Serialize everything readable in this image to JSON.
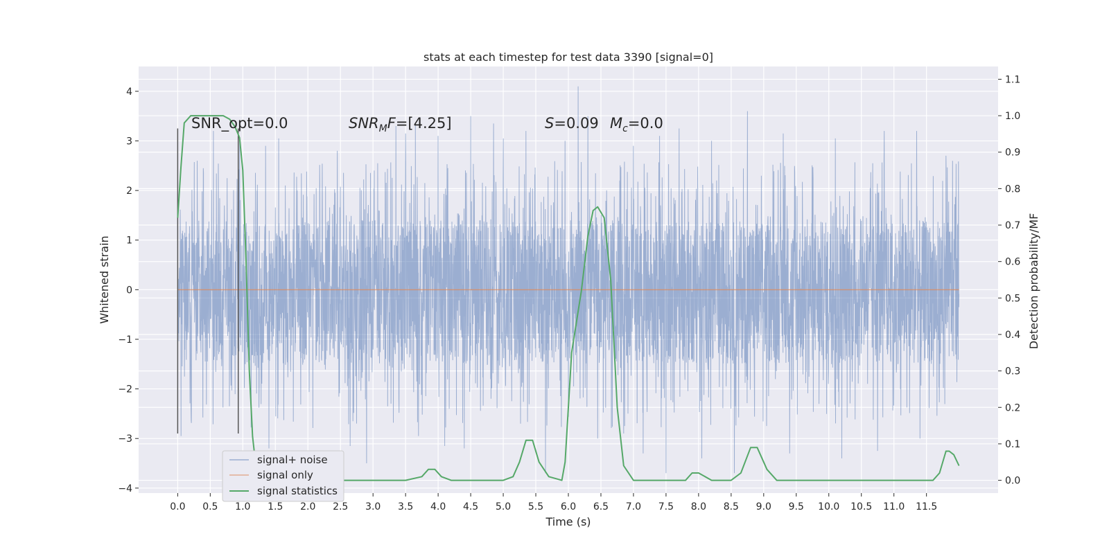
{
  "chart_data": {
    "type": "line",
    "title": "stats at each timestep for test data 3390 [signal=0]",
    "xlabel": "Time (s)",
    "ylabel": "Whitened strain",
    "y2label": "Detection probability/MF",
    "xlim": [
      -0.6,
      12.6
    ],
    "ylim": [
      -4.1,
      4.5
    ],
    "y2lim": [
      -0.035,
      1.135
    ],
    "x_ticks": [
      0.0,
      0.5,
      1.0,
      1.5,
      2.0,
      2.5,
      3.0,
      3.5,
      4.0,
      4.5,
      5.0,
      5.5,
      6.0,
      6.5,
      7.0,
      7.5,
      8.0,
      8.5,
      9.0,
      9.5,
      10.0,
      10.5,
      11.0,
      11.5
    ],
    "x_tick_labels": [
      "0.0",
      "0.5",
      "1.0",
      "1.5",
      "2.0",
      "2.5",
      "3.0",
      "3.5",
      "4.0",
      "4.5",
      "5.0",
      "5.5",
      "6.0",
      "6.5",
      "7.0",
      "7.5",
      "8.0",
      "8.5",
      "9.0",
      "9.5",
      "10.0",
      "10.5",
      "11.0",
      "11.5"
    ],
    "y_ticks": [
      -4,
      -3,
      -2,
      -1,
      0,
      1,
      2,
      3,
      4
    ],
    "y_tick_labels": [
      "−4",
      "−3",
      "−2",
      "−1",
      "0",
      "1",
      "2",
      "3",
      "4"
    ],
    "y2_ticks": [
      0.0,
      0.1,
      0.2,
      0.3,
      0.4,
      0.5,
      0.6,
      0.7,
      0.8,
      0.9,
      1.0,
      1.1
    ],
    "y2_tick_labels": [
      "0.0",
      "0.1",
      "0.2",
      "0.3",
      "0.4",
      "0.5",
      "0.6",
      "0.7",
      "0.8",
      "0.9",
      "1.0",
      "1.1"
    ],
    "grid": true,
    "legend_position": "lower-left",
    "annotations": {
      "snr_opt": "SNR_opt=0.0",
      "snr_mf_sym": "SNR",
      "snr_mf_sub": "M",
      "snr_mf_f": "F",
      "snr_mf_val": "=[4.25]",
      "s_sym": "S",
      "s_val": "=0.09",
      "mc_sym": "M",
      "mc_sub": "c",
      "mc_val": "=0.0"
    },
    "series": [
      {
        "name": "signal+ noise",
        "axis": "left",
        "color": "#4c72b0",
        "x_range": [
          0.0,
          12.0
        ],
        "band_y": [
          -1.5,
          1.4
        ],
        "peaks": [
          {
            "x": 0.3,
            "y": 2.6
          },
          {
            "x": 0.55,
            "y": 3.2
          },
          {
            "x": 0.95,
            "y": 3.0
          },
          {
            "x": 1.35,
            "y": 2.9
          },
          {
            "x": 1.55,
            "y": 3.05
          },
          {
            "x": 2.45,
            "y": 2.8
          },
          {
            "x": 3.35,
            "y": 3.3
          },
          {
            "x": 3.5,
            "y": 3.15
          },
          {
            "x": 3.65,
            "y": 3.35
          },
          {
            "x": 4.0,
            "y": 3.1
          },
          {
            "x": 4.5,
            "y": 3.5
          },
          {
            "x": 4.85,
            "y": 3.35
          },
          {
            "x": 5.0,
            "y": 3.05
          },
          {
            "x": 5.35,
            "y": 3.2
          },
          {
            "x": 5.95,
            "y": 3.0
          },
          {
            "x": 6.15,
            "y": 4.1
          },
          {
            "x": 6.3,
            "y": 3.5
          },
          {
            "x": 7.0,
            "y": 2.9
          },
          {
            "x": 7.4,
            "y": 3.1
          },
          {
            "x": 7.7,
            "y": 3.25
          },
          {
            "x": 8.2,
            "y": 3.0
          },
          {
            "x": 8.75,
            "y": 3.6
          },
          {
            "x": 9.3,
            "y": 3.15
          },
          {
            "x": 10.1,
            "y": 3.05
          },
          {
            "x": 10.85,
            "y": 3.2
          },
          {
            "x": 11.35,
            "y": 3.2
          },
          {
            "x": 11.8,
            "y": 2.7
          }
        ],
        "troughs": [
          {
            "x": 0.05,
            "y": -2.95
          },
          {
            "x": 0.55,
            "y": -2.7
          },
          {
            "x": 1.4,
            "y": -3.2
          },
          {
            "x": 2.65,
            "y": -3.15
          },
          {
            "x": 2.9,
            "y": -3.5
          },
          {
            "x": 3.7,
            "y": -2.95
          },
          {
            "x": 4.1,
            "y": -3.15
          },
          {
            "x": 4.4,
            "y": -3.2
          },
          {
            "x": 5.65,
            "y": -3.7
          },
          {
            "x": 6.45,
            "y": -3.0
          },
          {
            "x": 6.85,
            "y": -2.9
          },
          {
            "x": 7.15,
            "y": -3.3
          },
          {
            "x": 7.5,
            "y": -3.7
          },
          {
            "x": 8.05,
            "y": -3.4
          },
          {
            "x": 8.55,
            "y": -3.7
          },
          {
            "x": 9.4,
            "y": -3.3
          },
          {
            "x": 10.2,
            "y": -3.4
          },
          {
            "x": 10.75,
            "y": -3.25
          },
          {
            "x": 11.4,
            "y": -3.0
          }
        ]
      },
      {
        "name": "signal only",
        "axis": "left",
        "color": "#dd8452",
        "x": [
          0.0,
          12.0
        ],
        "y": [
          0.0,
          0.0
        ]
      },
      {
        "name": "signal statistics",
        "axis": "right",
        "color": "#55a868",
        "x": [
          0.0,
          0.05,
          0.1,
          0.2,
          0.3,
          0.5,
          0.6,
          0.7,
          0.8,
          0.88,
          0.95,
          1.0,
          1.05,
          1.1,
          1.15,
          1.2,
          1.3,
          1.4,
          1.6,
          2.0,
          3.0,
          3.5,
          3.75,
          3.85,
          3.95,
          4.05,
          4.2,
          4.5,
          5.0,
          5.15,
          5.25,
          5.35,
          5.45,
          5.55,
          5.7,
          5.9,
          5.95,
          6.05,
          6.2,
          6.3,
          6.38,
          6.45,
          6.55,
          6.65,
          6.75,
          6.85,
          7.0,
          7.3,
          7.6,
          7.8,
          7.9,
          8.0,
          8.2,
          8.5,
          8.65,
          8.8,
          8.9,
          9.05,
          9.2,
          9.5,
          10.0,
          11.0,
          11.4,
          11.6,
          11.7,
          11.8,
          11.85,
          11.92,
          12.0
        ],
        "y": [
          0.72,
          0.86,
          0.98,
          1.0,
          1.0,
          1.0,
          1.0,
          1.0,
          0.99,
          0.97,
          0.94,
          0.85,
          0.6,
          0.3,
          0.12,
          0.04,
          0.01,
          0.0,
          0.0,
          0.0,
          0.0,
          0.0,
          0.01,
          0.03,
          0.03,
          0.01,
          0.0,
          0.0,
          0.0,
          0.01,
          0.05,
          0.11,
          0.11,
          0.05,
          0.01,
          0.0,
          0.05,
          0.35,
          0.52,
          0.67,
          0.74,
          0.75,
          0.72,
          0.55,
          0.2,
          0.04,
          0.0,
          0.0,
          0.0,
          0.0,
          0.02,
          0.02,
          0.0,
          0.0,
          0.02,
          0.09,
          0.09,
          0.03,
          0.0,
          0.0,
          0.0,
          0.0,
          0.0,
          0.0,
          0.02,
          0.08,
          0.08,
          0.07,
          0.04
        ]
      }
    ],
    "vertical_markers_x": [
      0.0,
      0.93
    ]
  }
}
